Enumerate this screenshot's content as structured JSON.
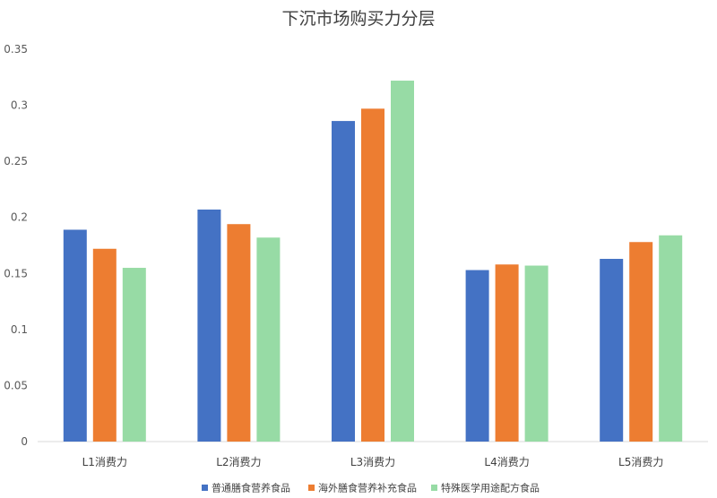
{
  "chart_data": {
    "type": "bar",
    "title": "下沉市场购买力分层",
    "categories": [
      "L1消费力",
      "L2消费力",
      "L3消费力",
      "L4消费力",
      "L5消费力"
    ],
    "series": [
      {
        "name": "普通膳食营养食品",
        "color": "#4472C4",
        "values": [
          0.189,
          0.207,
          0.286,
          0.153,
          0.163
        ]
      },
      {
        "name": "海外膳食营养补充食品",
        "color": "#ED7D31",
        "values": [
          0.172,
          0.194,
          0.297,
          0.158,
          0.178
        ]
      },
      {
        "name": "特殊医学用途配方食品",
        "color": "#97DBA5",
        "values": [
          0.155,
          0.182,
          0.322,
          0.157,
          0.184
        ]
      }
    ],
    "yticks": [
      "0",
      "0.05",
      "0.1",
      "0.15",
      "0.2",
      "0.25",
      "0.3",
      "0.35"
    ],
    "ylim": [
      0,
      0.35
    ],
    "grid": false,
    "legend": "bottom"
  }
}
